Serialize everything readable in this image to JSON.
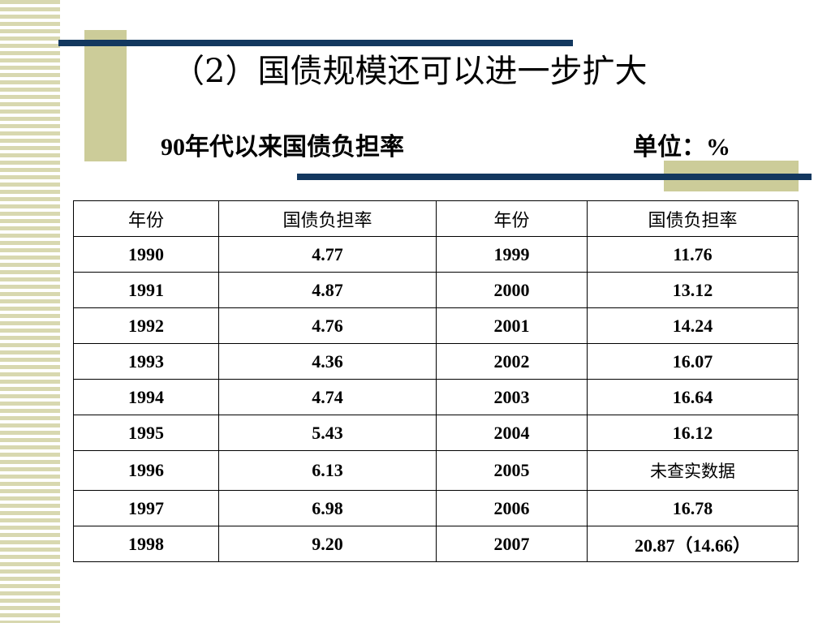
{
  "slide": {
    "title": "（2）国债规模还可以进一步扩大",
    "subtitle": "90年代以来国债负担率",
    "unit": "单位：%"
  },
  "table": {
    "headers": [
      "年份",
      "国债负担率",
      "年份",
      "国债负担率"
    ],
    "rows": [
      [
        "1990",
        "4.77",
        "1999",
        "11.76"
      ],
      [
        "1991",
        "4.87",
        "2000",
        "13.12"
      ],
      [
        "1992",
        "4.76",
        "2001",
        "14.24"
      ],
      [
        "1993",
        "4.36",
        "2002",
        "16.07"
      ],
      [
        "1994",
        "4.74",
        "2003",
        "16.64"
      ],
      [
        "1995",
        "5.43",
        "2004",
        "16.12"
      ],
      [
        "1996",
        "6.13",
        "2005",
        "未查实数据"
      ],
      [
        "1997",
        "6.98",
        "2006",
        "16.78"
      ],
      [
        "1998",
        "9.20",
        "2007",
        "20.87（14.66）"
      ]
    ]
  },
  "colors": {
    "accent_line": "#13385f",
    "accent_block": "#cccc99",
    "stripe": "#d8d8b0"
  }
}
